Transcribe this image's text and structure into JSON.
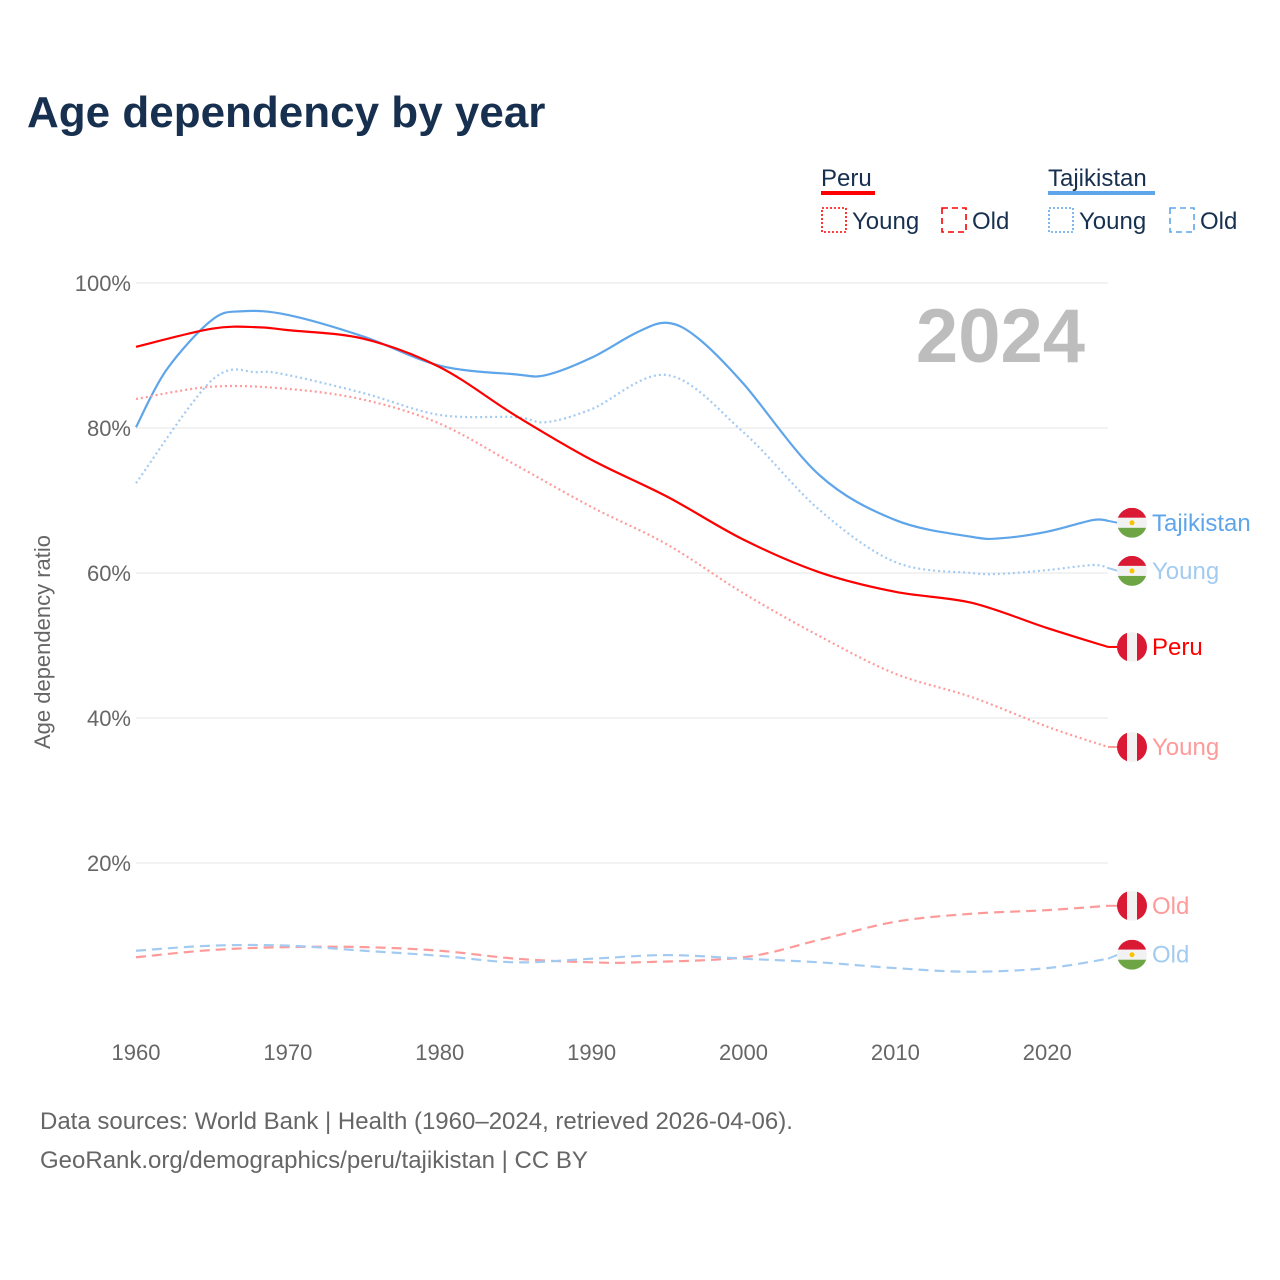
{
  "title": "Age dependency by year",
  "legend": {
    "groups": [
      {
        "name": "Peru",
        "color": "#ff0000",
        "items": [
          "Young",
          "Old"
        ]
      },
      {
        "name": "Tajikistan",
        "color": "#5ea5ea",
        "items": [
          "Young",
          "Old"
        ]
      }
    ]
  },
  "year_label": "2024",
  "footer": {
    "line1": "Data sources: World Bank | Health (1960–2024, retrieved 2026-04-06).",
    "line2": "GeoRank.org/demographics/peru/tajikistan | CC BY"
  },
  "chart_data": {
    "type": "line",
    "title": "Age dependency by year",
    "xlabel": "",
    "ylabel": "Age dependency ratio",
    "xlim": [
      1960,
      2024
    ],
    "ylim": [
      0,
      100
    ],
    "xticks": [
      1960,
      1970,
      1980,
      1990,
      2000,
      2010,
      2020
    ],
    "yticks": [
      20,
      40,
      60,
      80,
      100
    ],
    "ytick_labels": [
      "20%",
      "40%",
      "60%",
      "80%",
      "100%"
    ],
    "grid": true,
    "series": [
      {
        "name": "Tajikistan",
        "label": "Tajikistan",
        "country": "tj",
        "color": "#5ea5ea",
        "dash": "solid",
        "points": [
          [
            1960,
            80.1
          ],
          [
            1962,
            88
          ],
          [
            1965,
            94.9
          ],
          [
            1967,
            96.1
          ],
          [
            1970,
            95.6
          ],
          [
            1975,
            92.6
          ],
          [
            1980,
            88.6
          ],
          [
            1985,
            87.4
          ],
          [
            1987,
            87.3
          ],
          [
            1990,
            89.7
          ],
          [
            1993,
            93.2
          ],
          [
            1995,
            94.5
          ],
          [
            1997,
            92.4
          ],
          [
            2000,
            86.1
          ],
          [
            2005,
            73.5
          ],
          [
            2010,
            67.3
          ],
          [
            2015,
            65.0
          ],
          [
            2017,
            64.8
          ],
          [
            2020,
            65.7
          ],
          [
            2023,
            67.3
          ],
          [
            2024,
            67.2
          ]
        ]
      },
      {
        "name": "Tajikistan Young",
        "label": "Young",
        "country": "tj",
        "color": "#a3cbf1",
        "dash": "dotted",
        "points": [
          [
            1960,
            72.4
          ],
          [
            1965,
            86.6
          ],
          [
            1968,
            87.7
          ],
          [
            1970,
            87.3
          ],
          [
            1975,
            84.8
          ],
          [
            1980,
            81.8
          ],
          [
            1985,
            81.5
          ],
          [
            1987,
            80.8
          ],
          [
            1990,
            82.6
          ],
          [
            1995,
            87.3
          ],
          [
            2000,
            79.4
          ],
          [
            2005,
            68.7
          ],
          [
            2010,
            61.5
          ],
          [
            2015,
            60.0
          ],
          [
            2017,
            59.9
          ],
          [
            2020,
            60.4
          ],
          [
            2023,
            61.1
          ],
          [
            2024,
            60.7
          ]
        ]
      },
      {
        "name": "Peru",
        "label": "Peru",
        "country": "pe",
        "color": "#ff0000",
        "dash": "solid",
        "points": [
          [
            1960,
            91.2
          ],
          [
            1965,
            93.7
          ],
          [
            1968,
            93.9
          ],
          [
            1970,
            93.5
          ],
          [
            1975,
            92.3
          ],
          [
            1980,
            88.4
          ],
          [
            1985,
            81.7
          ],
          [
            1990,
            75.6
          ],
          [
            1995,
            70.5
          ],
          [
            2000,
            64.6
          ],
          [
            2005,
            60.1
          ],
          [
            2010,
            57.4
          ],
          [
            2015,
            55.9
          ],
          [
            2020,
            52.4
          ],
          [
            2024,
            49.8
          ]
        ]
      },
      {
        "name": "Peru Young",
        "label": "Young",
        "country": "pe",
        "color": "#ff9a9a",
        "dash": "dotted",
        "points": [
          [
            1960,
            84.0
          ],
          [
            1965,
            85.7
          ],
          [
            1970,
            85.4
          ],
          [
            1975,
            83.9
          ],
          [
            1980,
            80.6
          ],
          [
            1985,
            74.9
          ],
          [
            1990,
            69.1
          ],
          [
            1995,
            63.9
          ],
          [
            2000,
            57.2
          ],
          [
            2005,
            51.3
          ],
          [
            2010,
            46.1
          ],
          [
            2015,
            42.9
          ],
          [
            2020,
            38.8
          ],
          [
            2024,
            36.0
          ]
        ]
      },
      {
        "name": "Peru Old",
        "label": "Old",
        "country": "pe",
        "color": "#ff9a9a",
        "dash": "dashed",
        "points": [
          [
            1960,
            7.0
          ],
          [
            1965,
            8.0
          ],
          [
            1970,
            8.4
          ],
          [
            1975,
            8.4
          ],
          [
            1980,
            7.9
          ],
          [
            1985,
            6.8
          ],
          [
            1990,
            6.3
          ],
          [
            1993,
            6.3
          ],
          [
            2000,
            7.0
          ],
          [
            2005,
            9.4
          ],
          [
            2010,
            11.9
          ],
          [
            2015,
            13.0
          ],
          [
            2020,
            13.5
          ],
          [
            2024,
            14.1
          ]
        ]
      },
      {
        "name": "Tajikistan Old",
        "label": "Old",
        "country": "tj",
        "color": "#a3cbf1",
        "dash": "dashed",
        "points": [
          [
            1960,
            7.9
          ],
          [
            1965,
            8.6
          ],
          [
            1970,
            8.6
          ],
          [
            1975,
            7.9
          ],
          [
            1980,
            7.2
          ],
          [
            1985,
            6.3
          ],
          [
            1990,
            6.8
          ],
          [
            1995,
            7.3
          ],
          [
            2000,
            6.8
          ],
          [
            2005,
            6.3
          ],
          [
            2010,
            5.5
          ],
          [
            2015,
            5.0
          ],
          [
            2020,
            5.5
          ],
          [
            2024,
            6.8
          ]
        ]
      }
    ]
  }
}
